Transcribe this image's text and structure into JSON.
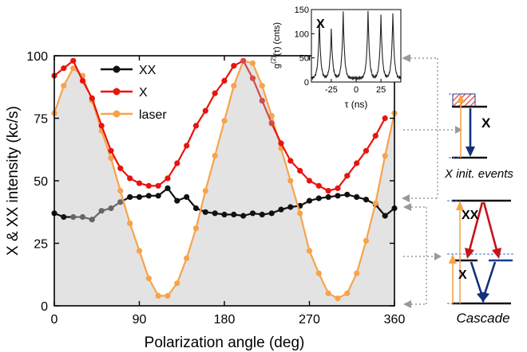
{
  "chart_data": [
    {
      "type": "line",
      "xlabel": "Polarization angle (deg)",
      "ylabel": "X & XX intensity (kc/s)",
      "xlim": [
        0,
        360
      ],
      "ylim": [
        0,
        100
      ],
      "xticks": [
        0,
        90,
        180,
        270,
        360
      ],
      "yticks": [
        0,
        25,
        50,
        75,
        100
      ],
      "legend_position": "top-left",
      "series": [
        {
          "name": "XX",
          "color": "#111111",
          "fade_color": "#666666",
          "x": [
            0,
            10,
            20,
            30,
            40,
            50,
            60,
            70,
            80,
            90,
            100,
            110,
            120,
            130,
            140,
            150,
            160,
            170,
            180,
            190,
            200,
            210,
            220,
            230,
            240,
            250,
            260,
            270,
            280,
            290,
            300,
            310,
            320,
            330,
            340,
            350,
            360
          ],
          "y": [
            37,
            35.5,
            35.5,
            35.5,
            34.5,
            38,
            39,
            41.5,
            43.5,
            43.5,
            44,
            44,
            47,
            42,
            43.5,
            39,
            37.5,
            37,
            36.5,
            36.5,
            36,
            37,
            36.5,
            37,
            38.5,
            39.5,
            40,
            42,
            43,
            43.5,
            44,
            44.5,
            43.5,
            42.5,
            40.5,
            36,
            39
          ]
        },
        {
          "name": "X",
          "color": "#e8140f",
          "fade_color": "#d24b4b",
          "x": [
            0,
            10,
            20,
            30,
            40,
            50,
            60,
            70,
            80,
            90,
            100,
            110,
            120,
            130,
            140,
            150,
            160,
            170,
            180,
            190,
            200,
            210,
            220,
            230,
            240,
            250,
            260,
            270,
            280,
            290,
            300,
            310,
            320,
            330,
            340,
            350
          ],
          "y": [
            92,
            95,
            98,
            90,
            83,
            72,
            62,
            55,
            51,
            49,
            48,
            48,
            51,
            57,
            64,
            72,
            78,
            85,
            90,
            96,
            98,
            91,
            82,
            73,
            65,
            58,
            54,
            50,
            48,
            46,
            47,
            52,
            57,
            62,
            68,
            75
          ]
        },
        {
          "name": "laser",
          "color": "#f7a34a",
          "fill_color": "#e3e3e3",
          "x": [
            0,
            10,
            20,
            30,
            40,
            50,
            60,
            70,
            80,
            90,
            100,
            110,
            120,
            130,
            140,
            150,
            160,
            170,
            180,
            190,
            200,
            210,
            220,
            230,
            240,
            250,
            260,
            270,
            280,
            290,
            300,
            310,
            320,
            330,
            340,
            350,
            360
          ],
          "y": [
            77,
            88,
            95,
            92,
            82,
            70,
            59,
            46,
            33,
            22,
            11,
            4,
            4,
            9,
            19,
            31,
            46,
            60,
            74,
            88,
            98,
            97,
            88,
            76,
            63,
            50,
            37,
            22,
            13,
            5,
            3,
            5,
            13,
            26,
            41,
            60,
            77
          ]
        }
      ]
    },
    {
      "type": "line",
      "title": "X",
      "xlabel": "τ (ns)",
      "ylabel_main": "g",
      "ylabel_sup": "(2)",
      "ylabel_rest": "(τ) (cnts)",
      "xlim": [
        -45,
        45
      ],
      "ylim": [
        0,
        150
      ],
      "xticks": [
        -25,
        0,
        25
      ],
      "yticks": [
        0,
        50,
        100,
        150
      ],
      "peaks": [
        {
          "x": -37,
          "y": 125
        },
        {
          "x": -25,
          "y": 110
        },
        {
          "x": -13,
          "y": 145
        },
        {
          "x": 12,
          "y": 148
        },
        {
          "x": 25,
          "y": 140
        },
        {
          "x": 37,
          "y": 142
        }
      ],
      "baseline": 8
    }
  ],
  "diagrams": [
    {
      "caption": "X init. events",
      "transition_label": "X"
    },
    {
      "caption": "Cascade",
      "upper_label": "XX",
      "lower_label": "X"
    }
  ]
}
